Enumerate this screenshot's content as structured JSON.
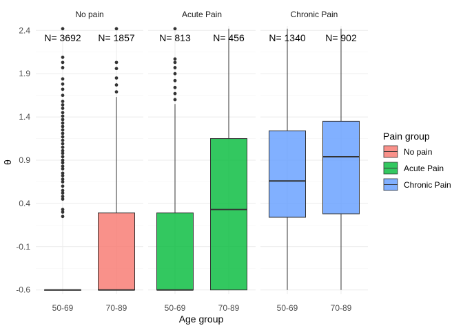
{
  "chart_data": {
    "type": "box",
    "xlabel": "Age group",
    "ylabel": "θ",
    "ylim": [
      -0.65,
      2.45
    ],
    "yticks": [
      -0.6,
      -0.1,
      0.4,
      0.9,
      1.4,
      1.9,
      2.4
    ],
    "ytick_labels": [
      "-0.6",
      "-0.1",
      "0.4",
      "0.9",
      "1.4",
      "1.9",
      "2.4"
    ],
    "grid": true,
    "legend": {
      "title": "Pain group",
      "placement": "right",
      "items": [
        {
          "label": "No pain",
          "color": "#F8766D"
        },
        {
          "label": "Acute Pain",
          "color": "#00BA38"
        },
        {
          "label": "Chronic Pain",
          "color": "#619CFF"
        }
      ]
    },
    "panels": [
      {
        "title": "No pain",
        "categories": [
          "50-69",
          "70-89"
        ],
        "boxes": [
          {
            "category": "50-69",
            "group": "No pain",
            "n_label": "N= 3692",
            "min": -0.6,
            "q1": -0.6,
            "median": -0.6,
            "q3": -0.6,
            "max": -0.6,
            "outliers": [
              0.25,
              0.3,
              0.33,
              0.45,
              0.48,
              0.52,
              0.55,
              0.6,
              0.65,
              0.68,
              0.72,
              0.75,
              0.8,
              0.83,
              0.87,
              0.9,
              0.94,
              0.98,
              1.01,
              1.05,
              1.09,
              1.13,
              1.17,
              1.21,
              1.25,
              1.29,
              1.33,
              1.37,
              1.41,
              1.45,
              1.5,
              1.54,
              1.58,
              1.65,
              1.72,
              1.78,
              1.84,
              1.97,
              2.03,
              2.09,
              2.42
            ]
          },
          {
            "category": "70-89",
            "group": "No pain",
            "n_label": "N= 1857",
            "min": -0.6,
            "q1": -0.6,
            "median": -0.6,
            "q3": 0.29,
            "max": 1.63,
            "outliers": [
              1.69,
              1.77,
              1.85,
              1.96,
              2.03,
              2.42
            ]
          }
        ]
      },
      {
        "title": "Acute Pain",
        "categories": [
          "50-69",
          "70-89"
        ],
        "boxes": [
          {
            "category": "50-69",
            "group": "Acute Pain",
            "n_label": "N= 813",
            "min": -0.6,
            "q1": -0.6,
            "median": -0.6,
            "q3": 0.29,
            "max": 1.55,
            "outliers": [
              1.6,
              1.67,
              1.74,
              1.82,
              1.9,
              1.97,
              2.03,
              2.07,
              2.42
            ]
          },
          {
            "category": "70-89",
            "group": "Acute Pain",
            "n_label": "N= 456",
            "min": -0.6,
            "q1": -0.6,
            "median": 0.33,
            "q3": 1.15,
            "max": 2.42,
            "outliers": []
          }
        ]
      },
      {
        "title": "Chronic Pain",
        "categories": [
          "50-69",
          "70-89"
        ],
        "boxes": [
          {
            "category": "50-69",
            "group": "Chronic Pain",
            "n_label": "N= 1340",
            "min": -0.6,
            "q1": 0.24,
            "median": 0.66,
            "q3": 1.24,
            "max": 2.42,
            "outliers": []
          },
          {
            "category": "70-89",
            "group": "Chronic Pain",
            "n_label": "N= 902",
            "min": -0.6,
            "q1": 0.28,
            "median": 0.94,
            "q3": 1.35,
            "max": 2.42,
            "outliers": []
          }
        ]
      }
    ]
  }
}
